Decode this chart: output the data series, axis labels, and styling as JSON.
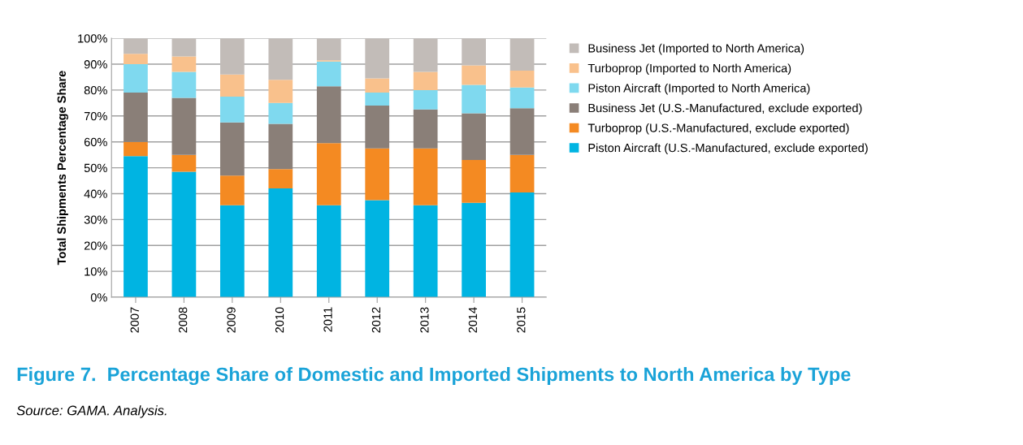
{
  "chart_data": {
    "type": "bar",
    "stacked": true,
    "title": "Figure 7.  Percentage Share of Domestic and Imported Shipments to North America by Type",
    "ylabel": "Total Shipments Percentage Share",
    "annotations": [
      "Source: GAMA. Analysis."
    ],
    "categories": [
      "2007",
      "2008",
      "2009",
      "2010",
      "2011",
      "2012",
      "2013",
      "2014",
      "2015"
    ],
    "series": [
      {
        "name": "Piston Aircraft (U.S.-Manufactured, exclude exported)",
        "color": "#00b4e2",
        "values": [
          54.5,
          48.5,
          35.5,
          42,
          35.5,
          37.5,
          35.5,
          36.5,
          40.5
        ]
      },
      {
        "name": "Turboprop (U.S.-Manufactured, exclude exported)",
        "color": "#f48a22",
        "values": [
          5.5,
          6.5,
          11.5,
          7.5,
          24,
          20,
          22,
          16.5,
          14.5
        ]
      },
      {
        "name": "Business Jet (U.S.-Manufactured, exclude exported)",
        "color": "#8a7f78",
        "values": [
          19,
          22,
          20.5,
          17.5,
          22,
          16.5,
          15,
          18,
          18
        ]
      },
      {
        "name": "Piston Aircraft (Imported to North America)",
        "color": "#7fd9ef",
        "values": [
          11,
          10,
          10,
          8,
          9.5,
          5,
          7.5,
          11,
          8
        ]
      },
      {
        "name": "Turboprop (Imported to North America)",
        "color": "#f9c18c",
        "values": [
          4,
          6,
          8.5,
          9,
          0.5,
          5.5,
          7,
          7.5,
          6.5
        ]
      },
      {
        "name": "Business Jet (Imported to North America)",
        "color": "#c2bcb8",
        "values": [
          6,
          7,
          14,
          16,
          8.5,
          15.5,
          13,
          10.5,
          12.5
        ]
      }
    ],
    "ylim": [
      0,
      100
    ],
    "yticks": [
      {
        "value": 0,
        "label": "0%"
      },
      {
        "value": 10,
        "label": "10%"
      },
      {
        "value": 20,
        "label": "20%"
      },
      {
        "value": 30,
        "label": "30%"
      },
      {
        "value": 40,
        "label": "40%"
      },
      {
        "value": 50,
        "label": "50%"
      },
      {
        "value": 60,
        "label": "60%"
      },
      {
        "value": 70,
        "label": "70%"
      },
      {
        "value": 80,
        "label": "80%"
      },
      {
        "value": 90,
        "label": "90%"
      },
      {
        "value": 100,
        "label": "100%"
      }
    ],
    "grid": "y",
    "legend": "right"
  }
}
